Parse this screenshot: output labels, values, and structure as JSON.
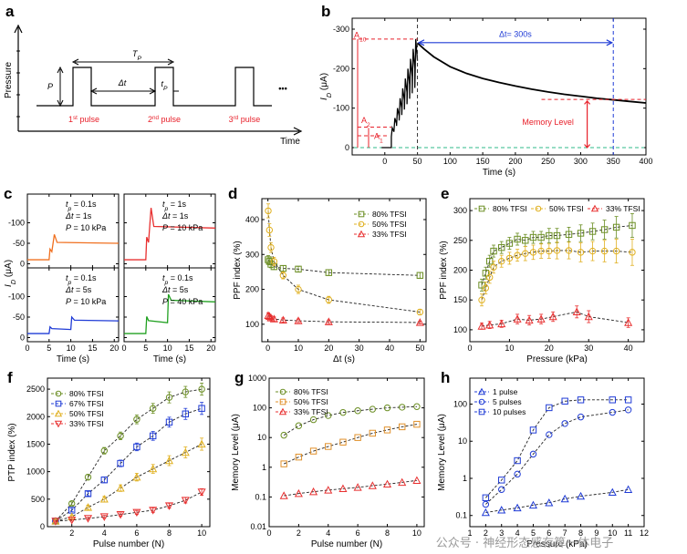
{
  "watermark": "公众号 · 神经形态感存算一体电子",
  "colors": {
    "red": "#e8202a",
    "blue": "#1f3bd6",
    "green_dark": "#6b8e23",
    "orange": "#e8902a",
    "yellow": "#e0c020",
    "teal": "#2fb88a",
    "c_orange": "#f07020",
    "c_red": "#e83030",
    "c_blue": "#1f3bd6",
    "c_green": "#20a020"
  },
  "chart_data": [
    {
      "panel": "a",
      "type": "diagram",
      "ylabel": "Pressure",
      "xlabel": "Time",
      "labels": {
        "P": "P",
        "Tp": "T",
        "Tp_sub": "P",
        "dt": "Δt",
        "tp": "t",
        "tp_sub": "P",
        "dots": "•••"
      },
      "pulses": [
        {
          "num": "1",
          "sup": "st",
          "text": " pulse"
        },
        {
          "num": "2",
          "sup": "nd",
          "text": " pulse"
        },
        {
          "num": "3",
          "sup": "rd",
          "text": " pulse"
        }
      ]
    },
    {
      "panel": "b",
      "type": "line",
      "xlabel": "Time (s)",
      "ylabel": "I",
      "ylabel_sub": "D",
      "ylabel_unit": " (μA)",
      "xlim": [
        -50,
        400
      ],
      "ylim": [
        -300,
        0
      ],
      "xticks": [
        0,
        50,
        100,
        150,
        200,
        250,
        300,
        350,
        400
      ],
      "yticks": [
        -300,
        -200,
        -100,
        0
      ],
      "annotations": {
        "A10": "A",
        "A10_sub": "10",
        "A2": "A",
        "A2_sub": "2",
        "A1": "A",
        "A1_sub": "1",
        "dt": "Δt= 300s",
        "memory": "Memory Level"
      },
      "series": [
        {
          "name": "decay",
          "x": [
            50,
            60,
            75,
            100,
            125,
            150,
            175,
            200,
            225,
            250,
            275,
            300,
            325,
            350,
            375,
            400
          ],
          "y": [
            -265,
            -250,
            -230,
            -205,
            -188,
            -175,
            -165,
            -156,
            -148,
            -141,
            -135,
            -130,
            -125,
            -121,
            -117,
            -113
          ]
        }
      ],
      "pulse_train": {
        "x": [
          10,
          50
        ],
        "peak_start": -50,
        "peak_end": -275,
        "count": 10
      }
    },
    {
      "panel": "c",
      "type": "line",
      "xlabel": "Time (s)",
      "ylabel": "I",
      "ylabel_sub": "D",
      "ylabel_unit": " (μA)",
      "subpanels": [
        {
          "tp": "0.1s",
          "dt": "1s",
          "P": "10 kPa",
          "pre_tp": "t",
          "pre_tp_sub": "p",
          "pre_dt": "Δt",
          "pre_P": "P",
          "color": "#f07020",
          "xticks": [],
          "yticks": [],
          "baseline": -70,
          "pulse": [
            5,
            6
          ],
          "peak": -105
        },
        {
          "tp": "1s",
          "dt": "1s",
          "P": "10 kPa",
          "pre_tp": "t",
          "pre_tp_sub": "p",
          "pre_dt": "Δt",
          "pre_P": "P",
          "color": "#e83030",
          "xticks": [],
          "yticks": [],
          "baseline": -130,
          "pulse": [
            5,
            6
          ],
          "peak": -210
        },
        {
          "tp": "0.1s",
          "dt": "5s",
          "P": "10 kPa",
          "pre_tp": "t",
          "pre_tp_sub": "p",
          "pre_dt": "Δt",
          "pre_P": "P",
          "color": "#1f3bd6",
          "xticks": [
            0,
            5,
            10,
            15,
            20
          ],
          "yticks": [
            0,
            -50,
            -100
          ],
          "baseline": -55,
          "pulse": [
            5,
            10
          ],
          "peak": -70
        },
        {
          "tp": "0.1s",
          "dt": "5s",
          "P": "40 kPa",
          "pre_tp": "t",
          "pre_tp_sub": "p",
          "pre_dt": "Δt",
          "pre_P": "P",
          "color": "#20a020",
          "xticks": [
            0,
            5,
            10,
            15,
            20
          ],
          "yticks": [],
          "baseline": -130,
          "pulse": [
            5,
            10
          ],
          "peak": -160
        }
      ]
    },
    {
      "panel": "d",
      "type": "scatter",
      "xlabel": "Δt (s)",
      "ylabel": "PPF index (%)",
      "xlim": [
        -2,
        52
      ],
      "ylim": [
        50,
        460
      ],
      "xticks": [
        0,
        10,
        20,
        30,
        40,
        50
      ],
      "yticks": [
        100,
        200,
        300,
        400
      ],
      "series": [
        {
          "name": "80% TFSI",
          "marker": "square",
          "color": "#6b8e23",
          "x": [
            0.1,
            0.5,
            1,
            2,
            5,
            10,
            20,
            50
          ],
          "y": [
            285,
            280,
            272,
            265,
            260,
            258,
            248,
            240
          ],
          "err": [
            12,
            10,
            10,
            8,
            8,
            8,
            8,
            8
          ]
        },
        {
          "name": "50% TFSI",
          "marker": "circle",
          "color": "#e0b020",
          "x": [
            0.1,
            0.5,
            1,
            2,
            5,
            10,
            20,
            50
          ],
          "y": [
            425,
            370,
            320,
            280,
            240,
            200,
            170,
            135
          ],
          "err": [
            20,
            18,
            14,
            12,
            10,
            12,
            10,
            8
          ]
        },
        {
          "name": "33% TFSI",
          "marker": "triangle",
          "color": "#e83030",
          "x": [
            0.1,
            0.5,
            1,
            2,
            5,
            10,
            20,
            50
          ],
          "y": [
            125,
            122,
            118,
            115,
            112,
            110,
            107,
            105
          ],
          "err": [
            8,
            7,
            7,
            6,
            6,
            5,
            5,
            4
          ]
        }
      ]
    },
    {
      "panel": "e",
      "type": "scatter",
      "xlabel": "Pressure (kPa)",
      "ylabel": "PPF index (%)",
      "xlim": [
        0,
        44
      ],
      "ylim": [
        80,
        320
      ],
      "xticks": [
        0,
        10,
        20,
        30,
        40
      ],
      "yticks": [
        100,
        150,
        200,
        250,
        300
      ],
      "series": [
        {
          "name": "80% TFSI",
          "marker": "square",
          "color": "#6b8e23",
          "x": [
            3,
            4,
            5,
            6,
            8,
            10,
            12,
            14,
            16,
            18,
            20,
            22,
            25,
            28,
            31,
            34,
            37,
            41
          ],
          "y": [
            175,
            195,
            215,
            232,
            238,
            245,
            252,
            250,
            255,
            255,
            258,
            258,
            260,
            262,
            265,
            268,
            272,
            275
          ],
          "err": [
            10,
            10,
            10,
            10,
            10,
            10,
            10,
            10,
            10,
            10,
            12,
            12,
            12,
            14,
            14,
            16,
            18,
            20
          ]
        },
        {
          "name": "50% TFSI",
          "marker": "circle",
          "color": "#e0b020",
          "x": [
            3,
            4,
            5,
            6,
            8,
            10,
            12,
            14,
            16,
            18,
            20,
            22,
            25,
            28,
            31,
            34,
            37,
            41
          ],
          "y": [
            150,
            170,
            188,
            205,
            215,
            220,
            225,
            228,
            230,
            232,
            232,
            233,
            233,
            230,
            232,
            232,
            232,
            230
          ],
          "err": [
            10,
            10,
            10,
            10,
            10,
            10,
            10,
            12,
            12,
            12,
            12,
            14,
            14,
            16,
            16,
            18,
            20,
            22
          ]
        },
        {
          "name": "33% TFSI",
          "marker": "triangle",
          "color": "#e83030",
          "x": [
            3,
            5,
            8,
            12,
            15,
            18,
            21,
            27,
            30,
            40
          ],
          "y": [
            106,
            108,
            110,
            118,
            116,
            118,
            122,
            130,
            122,
            112
          ],
          "err": [
            5,
            6,
            6,
            8,
            8,
            8,
            8,
            10,
            10,
            8
          ]
        }
      ]
    },
    {
      "panel": "f",
      "type": "scatter",
      "xlabel": "Pulse number (N)",
      "ylabel": "PTP index (%)",
      "xlim": [
        0.5,
        10.5
      ],
      "ylim": [
        0,
        2700
      ],
      "xticks": [
        2,
        4,
        6,
        8,
        10
      ],
      "yticks": [
        0,
        500,
        1000,
        1500,
        2000,
        2500
      ],
      "series": [
        {
          "name": "80% TFSI",
          "marker": "circle",
          "color": "#6b8e23",
          "x": [
            1,
            2,
            3,
            4,
            5,
            6,
            7,
            8,
            9,
            10
          ],
          "y": [
            100,
            420,
            900,
            1380,
            1650,
            1950,
            2150,
            2350,
            2450,
            2500
          ],
          "err": [
            20,
            30,
            50,
            60,
            70,
            80,
            90,
            100,
            100,
            110
          ]
        },
        {
          "name": "67% TFSI",
          "marker": "square",
          "color": "#1f3bd6",
          "x": [
            1,
            2,
            3,
            4,
            5,
            6,
            7,
            8,
            9,
            10
          ],
          "y": [
            100,
            300,
            600,
            850,
            1150,
            1450,
            1650,
            1900,
            2050,
            2150
          ],
          "err": [
            20,
            30,
            40,
            50,
            60,
            70,
            80,
            90,
            100,
            110
          ]
        },
        {
          "name": "50% TFSI",
          "marker": "triangle",
          "color": "#e0b020",
          "x": [
            1,
            2,
            3,
            4,
            5,
            6,
            7,
            8,
            9,
            10
          ],
          "y": [
            100,
            180,
            350,
            500,
            700,
            900,
            1050,
            1200,
            1350,
            1500
          ],
          "err": [
            20,
            30,
            40,
            50,
            60,
            70,
            80,
            90,
            100,
            110
          ]
        },
        {
          "name": "33% TFSI",
          "marker": "triangle-down",
          "color": "#e83030",
          "x": [
            1,
            2,
            3,
            4,
            5,
            6,
            7,
            8,
            9,
            10
          ],
          "y": [
            100,
            120,
            150,
            180,
            220,
            260,
            300,
            380,
            480,
            630
          ],
          "err": [
            15,
            20,
            20,
            25,
            30,
            35,
            40,
            45,
            50,
            60
          ]
        }
      ]
    },
    {
      "panel": "g",
      "type": "scatter",
      "xlabel": "Pulse number (N)",
      "ylabel": "Memory Level (μA)",
      "xscale": "linear",
      "yscale": "log",
      "xlim": [
        0,
        10.5
      ],
      "ylim": [
        0.01,
        1000
      ],
      "xticks": [
        0,
        2,
        4,
        6,
        8,
        10
      ],
      "yticks": [
        0.01,
        0.1,
        1,
        10,
        100,
        1000
      ],
      "ytick_labels": [
        "0.01",
        "0.1",
        "1",
        "10",
        "100",
        "1000"
      ],
      "series": [
        {
          "name": "80% TFSI",
          "marker": "circle",
          "color": "#6b8e23",
          "x": [
            1,
            2,
            3,
            4,
            5,
            6,
            7,
            8,
            9,
            10
          ],
          "y": [
            12,
            25,
            40,
            55,
            70,
            80,
            90,
            100,
            105,
            110
          ]
        },
        {
          "name": "50% TFSI",
          "marker": "square",
          "color": "#e0902a",
          "x": [
            1,
            2,
            3,
            4,
            5,
            6,
            7,
            8,
            9,
            10
          ],
          "y": [
            1.3,
            2.2,
            3.5,
            5,
            7,
            10,
            14,
            18,
            23,
            28
          ]
        },
        {
          "name": "33% TFSI",
          "marker": "triangle",
          "color": "#e83030",
          "x": [
            1,
            2,
            3,
            4,
            5,
            6,
            7,
            8,
            9,
            10
          ],
          "y": [
            0.11,
            0.13,
            0.15,
            0.17,
            0.19,
            0.21,
            0.24,
            0.27,
            0.31,
            0.36
          ]
        }
      ]
    },
    {
      "panel": "h",
      "type": "scatter",
      "xlabel": "Pressure (kPa)",
      "ylabel": "Memory Level (μA)",
      "yscale": "log",
      "xlim": [
        1,
        12
      ],
      "ylim": [
        0.05,
        500
      ],
      "xticks": [
        1,
        2,
        3,
        4,
        5,
        6,
        7,
        8,
        9,
        10,
        11,
        12
      ],
      "yticks": [
        0.1,
        1,
        10,
        100
      ],
      "ytick_labels": [
        "0.1",
        "1",
        "10",
        "100"
      ],
      "series": [
        {
          "name": "1 pulse",
          "marker": "triangle",
          "color": "#1f3bd6",
          "x": [
            2,
            3,
            4,
            5,
            6,
            7,
            8,
            10,
            11
          ],
          "y": [
            0.12,
            0.14,
            0.16,
            0.19,
            0.22,
            0.28,
            0.33,
            0.42,
            0.5
          ]
        },
        {
          "name": "5 pulses",
          "marker": "circle",
          "color": "#1f3bd6",
          "x": [
            2,
            3,
            4,
            5,
            6,
            7,
            8,
            10,
            11
          ],
          "y": [
            0.2,
            0.5,
            1.3,
            4.5,
            15,
            30,
            45,
            60,
            70
          ]
        },
        {
          "name": "10 pulses",
          "marker": "square",
          "color": "#1f3bd6",
          "x": [
            2,
            3,
            4,
            5,
            6,
            7,
            8,
            10,
            11
          ],
          "y": [
            0.3,
            0.9,
            3,
            20,
            80,
            120,
            130,
            130,
            130
          ]
        }
      ]
    }
  ]
}
